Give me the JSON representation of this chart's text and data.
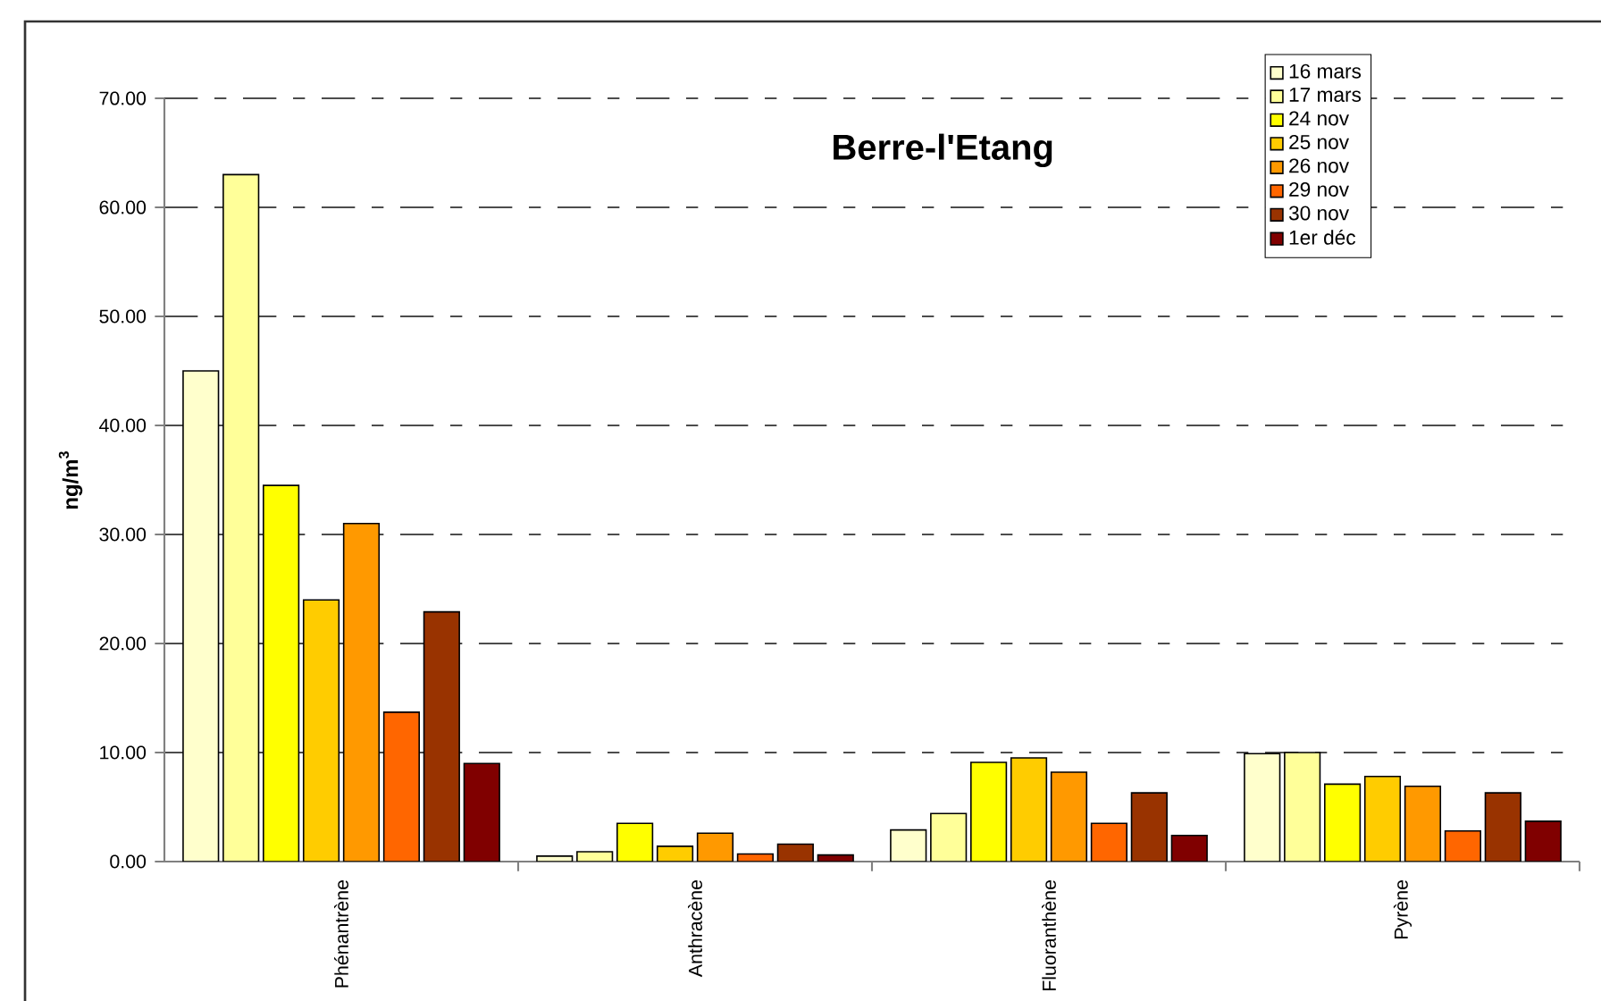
{
  "chart_data": {
    "type": "bar",
    "title": "Berre-l'Etang",
    "ylabel": "ng/m$^{3}$",
    "categories": [
      "Phénantrène",
      "Anthracène",
      "Fluoranthène",
      "Pyrène"
    ],
    "series": [
      {
        "name": "16 mars",
        "color": "#ffffcc",
        "values": [
          45,
          0.5,
          2.9,
          9.9
        ]
      },
      {
        "name": "17 mars",
        "color": "#ffff99",
        "values": [
          63,
          0.9,
          4.4,
          10.0
        ]
      },
      {
        "name": "24 nov",
        "color": "#ffff00",
        "values": [
          34.5,
          3.5,
          9.1,
          7.1
        ]
      },
      {
        "name": "25 nov",
        "color": "#ffcc00",
        "values": [
          24,
          1.4,
          9.5,
          7.8
        ]
      },
      {
        "name": "26 nov",
        "color": "#ff9900",
        "values": [
          31,
          2.6,
          8.2,
          6.9
        ]
      },
      {
        "name": "29 nov",
        "color": "#ff6600",
        "values": [
          13.7,
          0.7,
          3.5,
          2.8
        ]
      },
      {
        "name": "30 nov",
        "color": "#993300",
        "values": [
          22.9,
          1.6,
          6.3,
          6.3
        ]
      },
      {
        "name": "1er déc",
        "color": "#800000",
        "values": [
          9,
          0.6,
          2.4,
          3.7
        ]
      }
    ],
    "ylim": [
      0,
      70
    ],
    "yticks": [
      {
        "value": 0,
        "label": "0.00"
      },
      {
        "value": 10,
        "label": "10.00"
      },
      {
        "value": 20,
        "label": "20.00"
      },
      {
        "value": 30,
        "label": "30.00"
      },
      {
        "value": 40,
        "label": "40.00"
      },
      {
        "value": 50,
        "label": "50.00"
      },
      {
        "value": 60,
        "label": "60.00"
      },
      {
        "value": 70,
        "label": "70.00"
      }
    ],
    "grid": "y",
    "legend": "top right"
  }
}
